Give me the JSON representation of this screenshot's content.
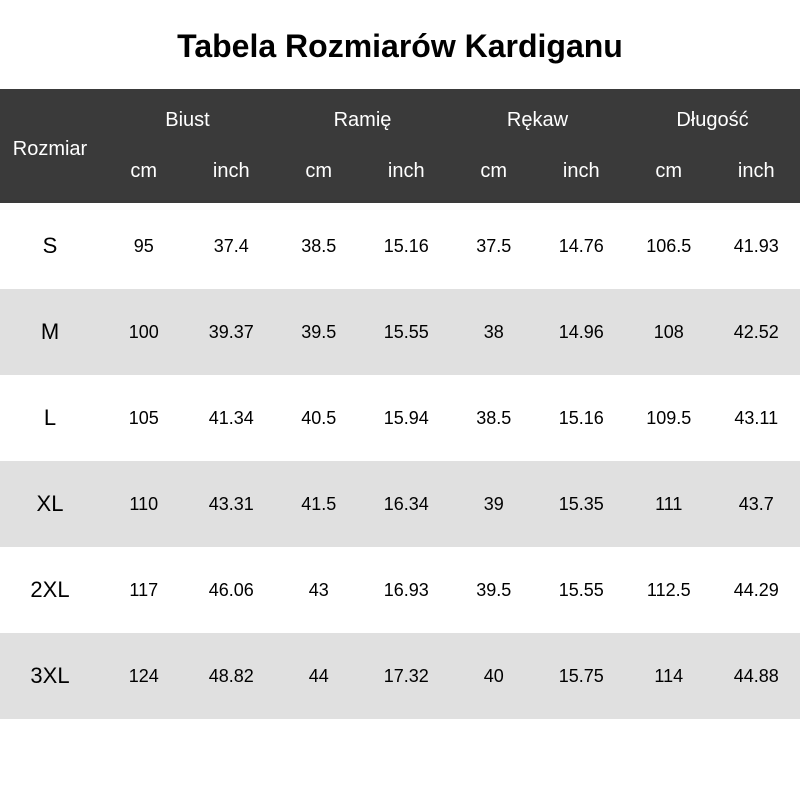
{
  "title": "Tabela Rozmiarów Kardiganu",
  "title_fontsize": 32,
  "header_bg": "#3a3a3a",
  "header_fg": "#ffffff",
  "row_bg_odd": "#ffffff",
  "row_bg_even": "#e0e0e0",
  "body_fg": "#000000",
  "size_fontsize": 22,
  "value_fontsize": 18,
  "header_fontsize": 20,
  "size_label": "Rozmiar",
  "unit_cm": "cm",
  "unit_inch": "inch",
  "measures": [
    "Biust",
    "Ramię",
    "Rękaw",
    "Długość"
  ],
  "rows": [
    {
      "size": "S",
      "vals": [
        "95",
        "37.4",
        "38.5",
        "15.16",
        "37.5",
        "14.76",
        "106.5",
        "41.93"
      ]
    },
    {
      "size": "M",
      "vals": [
        "100",
        "39.37",
        "39.5",
        "15.55",
        "38",
        "14.96",
        "108",
        "42.52"
      ]
    },
    {
      "size": "L",
      "vals": [
        "105",
        "41.34",
        "40.5",
        "15.94",
        "38.5",
        "15.16",
        "109.5",
        "43.11"
      ]
    },
    {
      "size": "XL",
      "vals": [
        "110",
        "43.31",
        "41.5",
        "16.34",
        "39",
        "15.35",
        "111",
        "43.7"
      ]
    },
    {
      "size": "2XL",
      "vals": [
        "117",
        "46.06",
        "43",
        "16.93",
        "39.5",
        "15.55",
        "112.5",
        "44.29"
      ]
    },
    {
      "size": "3XL",
      "vals": [
        "124",
        "48.82",
        "44",
        "17.32",
        "40",
        "15.75",
        "114",
        "44.88"
      ]
    }
  ]
}
